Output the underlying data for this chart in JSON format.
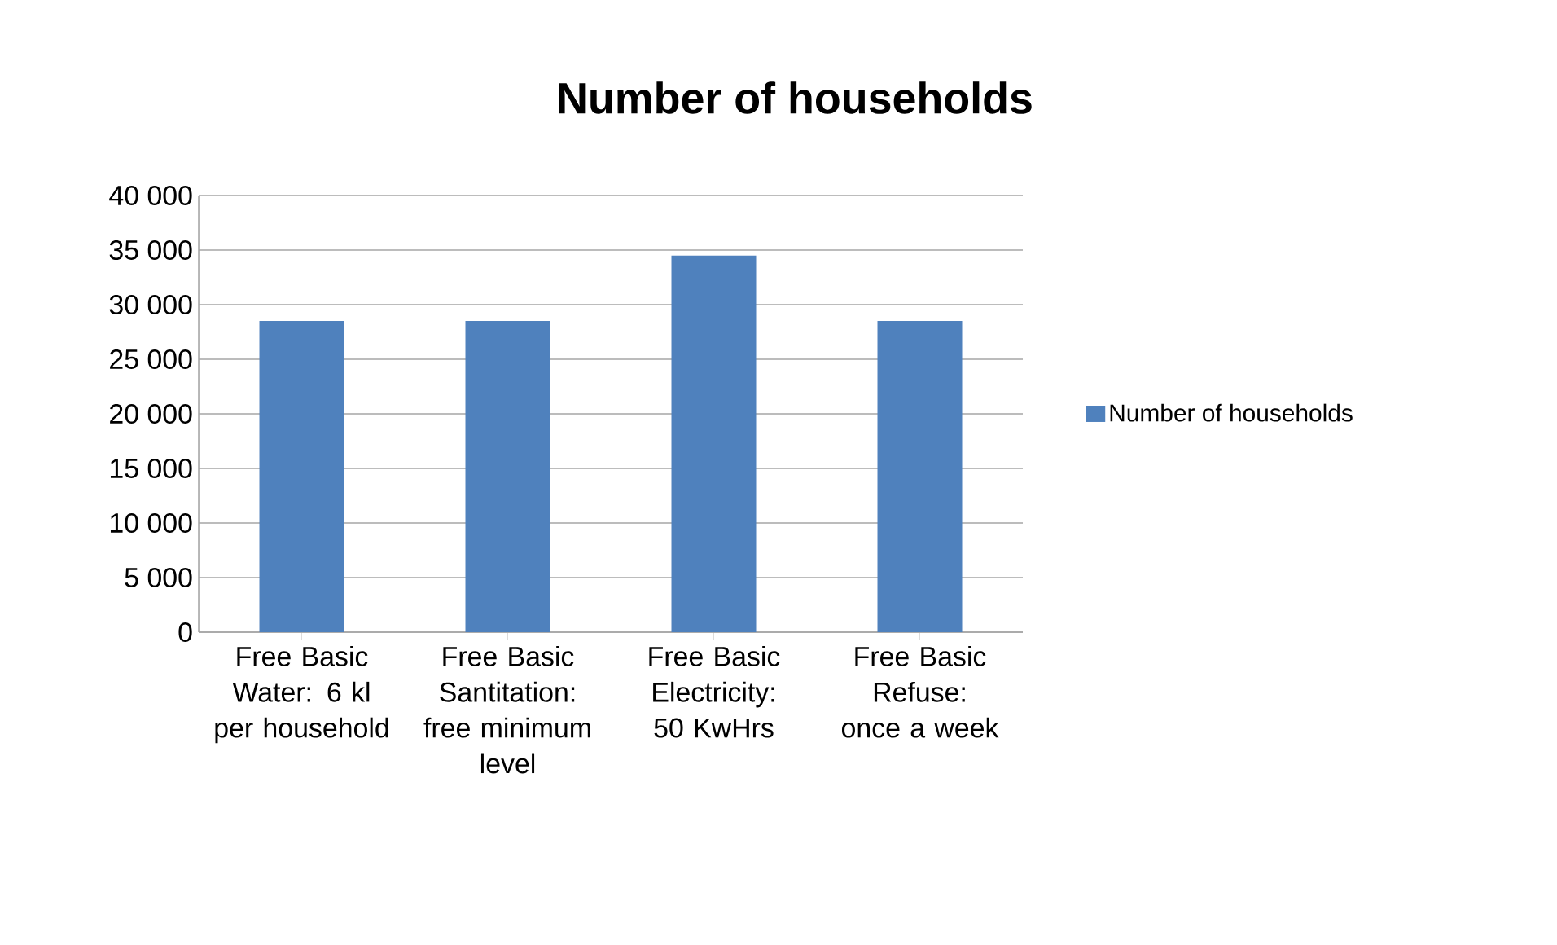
{
  "chart_data": {
    "type": "bar",
    "title": "Number of households",
    "categories": [
      "Free Basic Water: 6 kl per household",
      "Free Basic Santitation: free minimum level",
      "Free Basic Electricity: 50 KwHrs",
      "Free Basic Refuse: once a week"
    ],
    "series": [
      {
        "name": "Number of households",
        "color": "#4f81bd",
        "values": [
          28500,
          28500,
          34500,
          28500
        ]
      }
    ],
    "ylim": [
      0,
      40000
    ],
    "yticks": [
      {
        "value": 0,
        "label": "0"
      },
      {
        "value": 5000,
        "label": "5 000"
      },
      {
        "value": 10000,
        "label": "10 000"
      },
      {
        "value": 15000,
        "label": "15 000"
      },
      {
        "value": 20000,
        "label": "20 000"
      },
      {
        "value": 25000,
        "label": "25 000"
      },
      {
        "value": 30000,
        "label": "30 000"
      },
      {
        "value": 35000,
        "label": "35 000"
      },
      {
        "value": 40000,
        "label": "40 000"
      }
    ],
    "grid": "y",
    "legend": "right"
  }
}
